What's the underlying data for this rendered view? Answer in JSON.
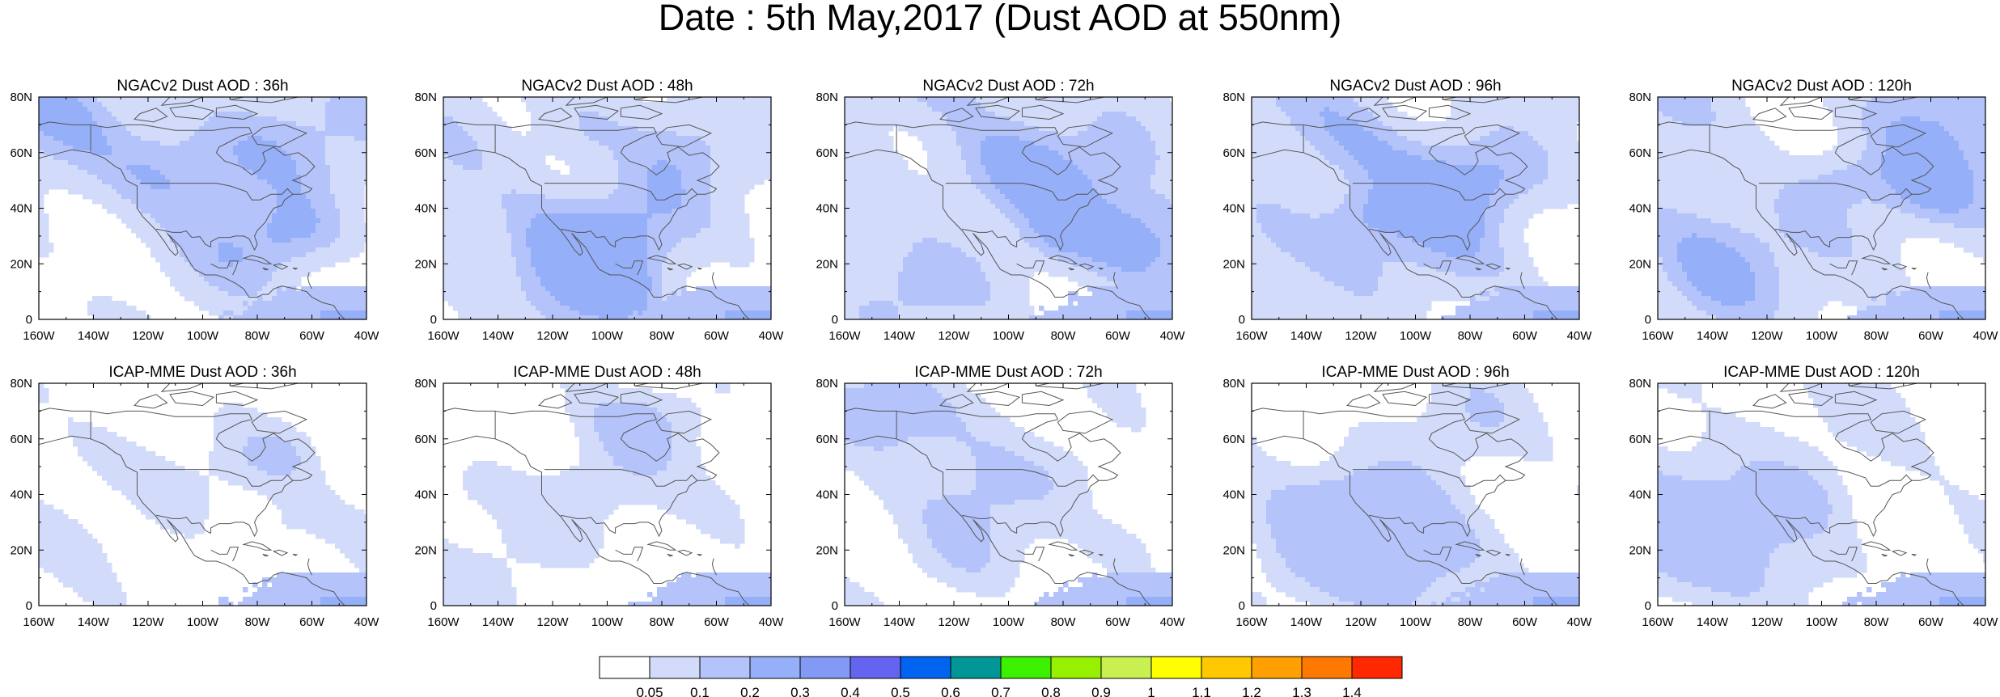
{
  "title": "Date : 5th May,2017 (Dust AOD at 550nm)",
  "lat_ticks": [
    "80N",
    "60N",
    "40N",
    "20N",
    "0"
  ],
  "lon_ticks": [
    "160W",
    "140W",
    "120W",
    "100W",
    "80W",
    "60W",
    "40W"
  ],
  "panels": [
    {
      "title": "NGACv2 Dust AOD : 36h",
      "model": "NGACv2",
      "lead_hours": 36,
      "coverage": 0.62,
      "seed": 1
    },
    {
      "title": "NGACv2 Dust AOD : 48h",
      "model": "NGACv2",
      "lead_hours": 48,
      "coverage": 0.66,
      "seed": 2
    },
    {
      "title": "NGACv2 Dust AOD : 72h",
      "model": "NGACv2",
      "lead_hours": 72,
      "coverage": 0.74,
      "seed": 3
    },
    {
      "title": "NGACv2 Dust AOD : 96h",
      "model": "NGACv2",
      "lead_hours": 96,
      "coverage": 0.72,
      "seed": 4
    },
    {
      "title": "NGACv2 Dust AOD : 120h",
      "model": "NGACv2",
      "lead_hours": 120,
      "coverage": 0.76,
      "seed": 5
    },
    {
      "title": "ICAP-MME Dust AOD : 36h",
      "model": "ICAP-MME",
      "lead_hours": 36,
      "coverage": 0.28,
      "seed": 6
    },
    {
      "title": "ICAP-MME Dust AOD : 48h",
      "model": "ICAP-MME",
      "lead_hours": 48,
      "coverage": 0.34,
      "seed": 7
    },
    {
      "title": "ICAP-MME Dust AOD : 72h",
      "model": "ICAP-MME",
      "lead_hours": 72,
      "coverage": 0.42,
      "seed": 8
    },
    {
      "title": "ICAP-MME Dust AOD : 96h",
      "model": "ICAP-MME",
      "lead_hours": 96,
      "coverage": 0.5,
      "seed": 9
    },
    {
      "title": "ICAP-MME Dust AOD : 120h",
      "model": "ICAP-MME",
      "lead_hours": 120,
      "coverage": 0.54,
      "seed": 10
    }
  ],
  "colorbar": {
    "colors": [
      "#ffffff",
      "#d2dcfa",
      "#b4c3fa",
      "#96aff9",
      "#829af5",
      "#6464f0",
      "#0064f0",
      "#009696",
      "#3cf000",
      "#96f000",
      "#c8f050",
      "#ffff00",
      "#ffc800",
      "#ffa000",
      "#ff7800",
      "#ff2800"
    ],
    "labels": [
      "0.05",
      "0.1",
      "0.2",
      "0.3",
      "0.4",
      "0.5",
      "0.6",
      "0.7",
      "0.8",
      "0.9",
      "1",
      "1.1",
      "1.2",
      "1.3",
      "1.4"
    ]
  },
  "map_colors": {
    "aod_low": "#d2dcfa",
    "aod_mid": "#b4c3fa",
    "aod_high": "#96aff9",
    "coastline": "#555555"
  }
}
